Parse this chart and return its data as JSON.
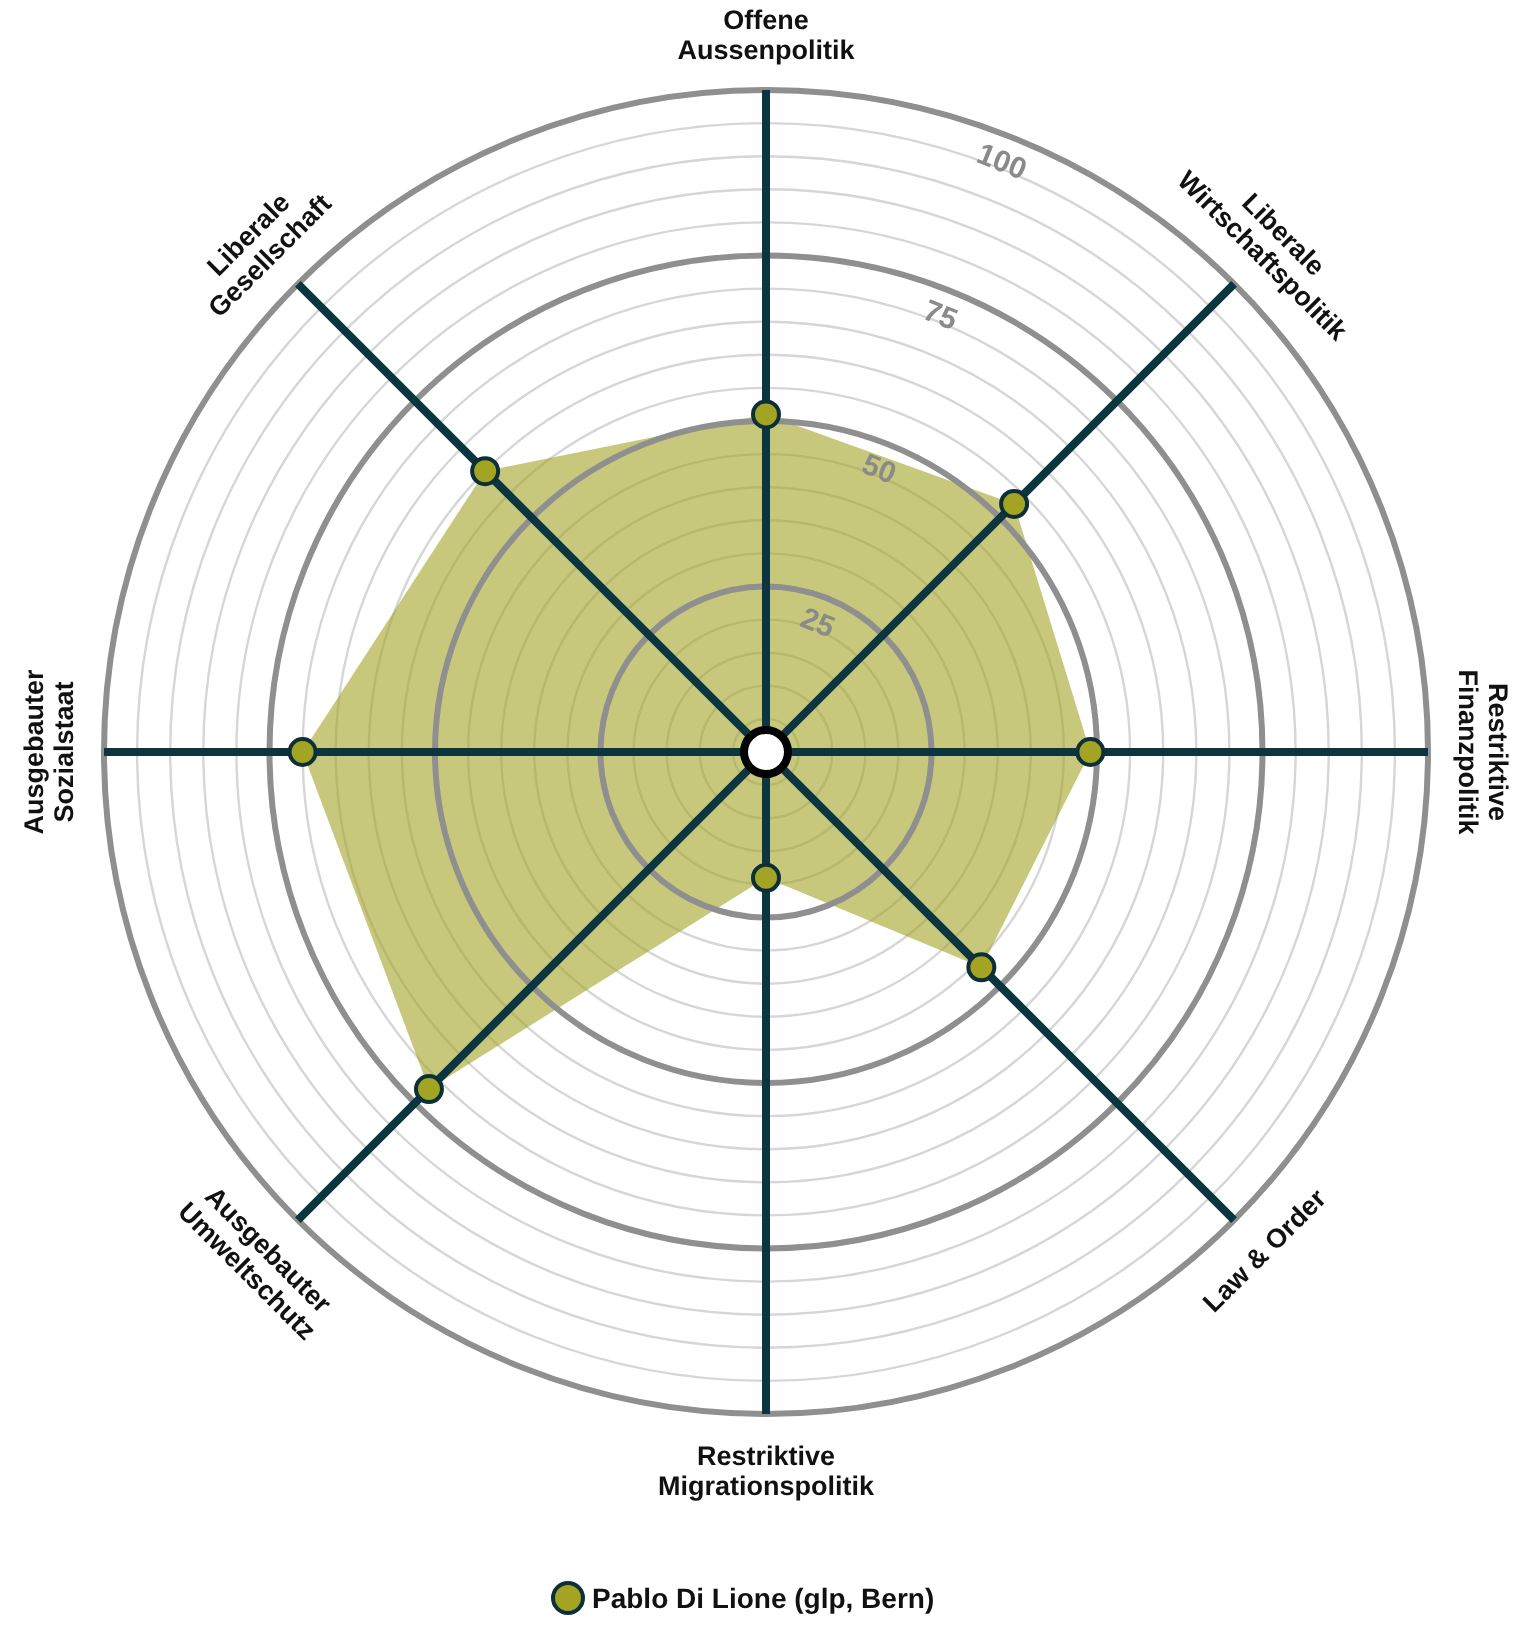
{
  "chart_data": {
    "type": "radar",
    "categories": [
      "Offene\nAussenpolitik",
      "Liberale\nWirtschaftspolitik",
      "Restriktive\nFinanzpolitik",
      "Law & Order",
      "Restriktive\nMigrationspolitik",
      "Ausgebauter\nUmweltschutz",
      "Ausgebauter\nSozialstaat",
      "Liberale\nGesellschaft"
    ],
    "series": [
      {
        "name": "Pablo Di Lione (glp, Bern)",
        "color": "#a3a324",
        "values": [
          51,
          53,
          49,
          46,
          19,
          72,
          70,
          60
        ]
      }
    ],
    "ylim": [
      0,
      100
    ],
    "yticks": [
      25,
      50,
      75,
      100
    ],
    "grid": true,
    "legend": "bottom",
    "marker": "circle"
  }
}
